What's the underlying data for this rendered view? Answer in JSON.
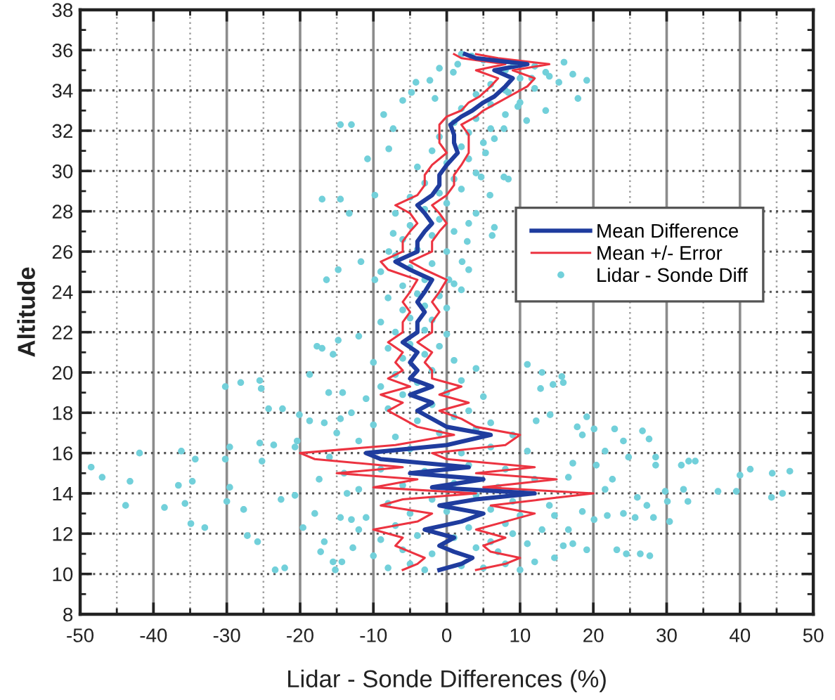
{
  "chart_data": {
    "type": "line",
    "xlabel": "Lidar - Sonde Differences (%)",
    "ylabel": "Altitude",
    "xlim": [
      -50,
      50
    ],
    "xticks": [
      -50,
      -40,
      -30,
      -20,
      -10,
      0,
      10,
      20,
      30,
      40,
      50
    ],
    "ylim": [
      8,
      38
    ],
    "yticks": [
      8,
      10,
      12,
      14,
      16,
      18,
      20,
      22,
      24,
      26,
      28,
      30,
      32,
      34,
      36,
      38
    ],
    "grid": true,
    "legend": "right",
    "series": [
      {
        "name": "Mean Difference",
        "color": "#1f3c9e",
        "x": [
          -1,
          2,
          3.5,
          1,
          -1,
          1,
          -3,
          2,
          5,
          -1,
          4,
          12,
          -2,
          5,
          -5,
          3,
          -9,
          -11,
          0,
          6,
          0,
          -2,
          -4,
          -2,
          -5,
          -2,
          -5,
          -4,
          -5,
          -4,
          -6,
          -4,
          -4,
          -3,
          -4,
          -3,
          -2,
          -5,
          -7,
          -4,
          -4,
          -3,
          -2,
          -3,
          -4,
          -2,
          -1,
          -1,
          0,
          1.5,
          1,
          1,
          0.5,
          2,
          3.5,
          5,
          6.5,
          8,
          9,
          6.5,
          11,
          4,
          2.5
        ],
        "values": [
          10.2,
          10.5,
          10.8,
          11.1,
          11.4,
          11.8,
          12.2,
          12.6,
          13.0,
          13.4,
          13.7,
          14.0,
          14.3,
          14.7,
          15.0,
          15.3,
          15.7,
          16.0,
          16.4,
          16.9,
          17.3,
          17.7,
          18.1,
          18.5,
          18.9,
          19.3,
          19.7,
          20.1,
          20.5,
          21.0,
          21.5,
          22.0,
          22.5,
          23.0,
          23.5,
          24.0,
          24.6,
          25.1,
          25.5,
          26.0,
          26.5,
          27.0,
          27.4,
          27.9,
          28.3,
          28.8,
          29.3,
          29.8,
          30.3,
          30.9,
          31.4,
          31.8,
          32.3,
          32.7,
          33.0,
          33.4,
          33.7,
          34.2,
          34.6,
          35.0,
          35.3,
          35.6,
          35.8
        ]
      },
      {
        "name": "Mean +/- Error",
        "color": "#ec3340",
        "x": [
          4,
          8,
          10,
          6,
          5,
          8,
          4,
          8,
          12,
          6,
          13,
          20,
          5,
          15,
          4,
          12,
          0,
          -2,
          8,
          10,
          4,
          2,
          -1,
          3,
          -1,
          2,
          -2,
          -2,
          -3,
          -2,
          -4,
          -2,
          -2,
          -1,
          -2,
          -1,
          0,
          -3,
          -5,
          -2,
          -2,
          -1,
          0,
          -1,
          -2,
          0,
          1,
          1,
          2,
          3,
          3,
          3,
          2,
          4,
          5,
          7,
          8.5,
          11,
          12,
          9,
          14,
          7,
          4
        ],
        "values": [
          10.2,
          10.5,
          10.8,
          11.1,
          11.4,
          11.8,
          12.2,
          12.6,
          13.0,
          13.4,
          13.7,
          14.0,
          14.3,
          14.7,
          15.0,
          15.3,
          15.7,
          16.0,
          16.4,
          16.9,
          17.3,
          17.7,
          18.1,
          18.5,
          18.9,
          19.3,
          19.7,
          20.1,
          20.5,
          21.0,
          21.5,
          22.0,
          22.5,
          23.0,
          23.5,
          24.0,
          24.6,
          25.1,
          25.5,
          26.0,
          26.5,
          27.0,
          27.4,
          27.9,
          28.3,
          28.8,
          29.3,
          29.8,
          30.3,
          30.9,
          31.4,
          31.8,
          32.3,
          32.7,
          33.0,
          33.4,
          33.7,
          34.2,
          34.6,
          35.0,
          35.3,
          35.6,
          35.8
        ]
      },
      {
        "color": "#ec3340",
        "x": [
          -6,
          -4,
          -3,
          -5,
          -7,
          -6,
          -10,
          -4,
          -2,
          -9,
          -6,
          4,
          -10,
          -4,
          -15,
          -6,
          -18,
          -20,
          -7,
          1,
          -4,
          -6,
          -8,
          -6,
          -9,
          -5,
          -8,
          -6,
          -7,
          -6,
          -8,
          -6,
          -6,
          -5,
          -6,
          -5,
          -4,
          -8,
          -9,
          -6,
          -6,
          -5,
          -4,
          -5,
          -7,
          -4,
          -3,
          -3,
          -2,
          0,
          -1,
          -1,
          -1,
          0,
          2,
          3,
          4.5,
          6,
          7,
          4,
          8,
          2,
          1
        ],
        "values": [
          10.2,
          10.5,
          10.8,
          11.1,
          11.4,
          11.8,
          12.2,
          12.6,
          13.0,
          13.4,
          13.7,
          14.0,
          14.3,
          14.7,
          15.0,
          15.3,
          15.7,
          16.0,
          16.4,
          16.9,
          17.3,
          17.7,
          18.1,
          18.5,
          18.9,
          19.3,
          19.7,
          20.1,
          20.5,
          21.0,
          21.5,
          22.0,
          22.5,
          23.0,
          23.5,
          24.0,
          24.6,
          25.1,
          25.5,
          26.0,
          26.5,
          27.0,
          27.4,
          27.9,
          28.3,
          28.8,
          29.3,
          29.8,
          30.3,
          30.9,
          31.4,
          31.8,
          32.3,
          32.7,
          33.0,
          33.4,
          33.7,
          34.2,
          34.6,
          35.0,
          35.3,
          35.6,
          35.8
        ]
      },
      {
        "name": "Lidar - Sonde Diff",
        "type": "scatter",
        "color": "#72d0da",
        "marker": "circle",
        "x": [
          -41.9,
          -48.5,
          -47,
          -43.2,
          -43.8,
          -38.5,
          -36.2,
          -34.3,
          -36.6,
          -34.7,
          -35.7,
          -34.9,
          -33,
          -30.2,
          -28.1,
          -25.5,
          -25.3,
          -30.2,
          -29.6,
          -29.6,
          -30,
          -27.7,
          -27.2,
          -25.8,
          -23.4,
          -22.1,
          -24.3,
          -22.4,
          -25.5,
          -25.2,
          -23.6,
          -22.6,
          -20.7,
          -20.4,
          -20.7,
          -20.1,
          -18.7,
          -17.7,
          -15.5,
          -14.8,
          -14.2,
          -14.5,
          -18.7,
          -17.4,
          -19.6,
          -18,
          -16.7,
          -15.5,
          -14.5,
          -13.6,
          -13,
          -17.2,
          -14.3,
          -12.8,
          -17,
          -16.1,
          -16.7,
          -15.2,
          15.7,
          15.9,
          12.8,
          20.1,
          22.9,
          26.7,
          27.6,
          24.1,
          21.6,
          24.8,
          28.5,
          28.5,
          32,
          33,
          33.9,
          40,
          41.4,
          44.4,
          46.8,
          44.3,
          45.8,
          39.5,
          37,
          32.3,
          32.9,
          29.8,
          30.1,
          30.4,
          28.2,
          26,
          27.3,
          24.1,
          25.7,
          21.9,
          22.6,
          21.6,
          20.4,
          20.1,
          23.2,
          24.5,
          26.4,
          19.1,
          17.2,
          15.9,
          14.7,
          18.5,
          16.6,
          14.7,
          16.6,
          17.2,
          18.5,
          17.8,
          12.2,
          19.1,
          14.1,
          27.7,
          11,
          13,
          14.5,
          -14.5,
          -13,
          -17,
          -16.4,
          -14.8,
          -10.8,
          -9.8,
          -7.9,
          -7.3,
          -8.6,
          -6,
          -4.8,
          -4.2,
          -2.3,
          -1.6,
          -1,
          0.9,
          1.5,
          3.4,
          9.1,
          11.6,
          13.5,
          15.3,
          17.2,
          19.1,
          17.9,
          13.5,
          9.7,
          10.9,
          7.8,
          6.5,
          5.3,
          4.7,
          7.8,
          8.4,
          5.9,
          6.5,
          6.2,
          4,
          2.8,
          2.1,
          0.3,
          -7.3,
          -7.9,
          -9.8,
          -11.7,
          -14.5,
          -13.3,
          8.4,
          -8,
          -5,
          -3,
          2,
          5,
          8,
          10,
          12,
          -10,
          -6,
          -2,
          4,
          7,
          11,
          -9,
          -4,
          1,
          6,
          9,
          -12,
          -7,
          3,
          8,
          13,
          -11,
          -5,
          0,
          6,
          10,
          -8,
          -2,
          4,
          9,
          14,
          -12,
          -6,
          1,
          7,
          12,
          -14,
          -9,
          -3,
          3,
          8,
          -16,
          -15,
          -5,
          2,
          6,
          11,
          -12,
          -7,
          -1,
          4,
          9,
          -10,
          -4,
          1,
          6,
          -13,
          -8,
          -2,
          3,
          -11,
          -6,
          0,
          5,
          -9,
          -4,
          2,
          -7,
          -2,
          4,
          -10,
          -6,
          -3,
          1,
          -8,
          -5,
          -1,
          -12,
          -7,
          -3,
          0,
          -9,
          -5,
          -2,
          -6,
          -3,
          0,
          -8,
          -4,
          -1,
          2,
          -6,
          -3,
          1,
          -9,
          -5,
          -2,
          3,
          -7,
          -4,
          0,
          -6,
          -2,
          1,
          -5,
          -1,
          3,
          -7,
          -3,
          0,
          -5,
          -1,
          2,
          -3,
          1,
          4,
          -4,
          0,
          3,
          -2,
          2,
          5,
          -1,
          3,
          6,
          1,
          4,
          8,
          2,
          6,
          10,
          4,
          8,
          12,
          6,
          10,
          14,
          8,
          12,
          5,
          16,
          2
        ],
        "values": [
          16.0,
          15.3,
          14.8,
          14.6,
          13.4,
          13.3,
          16.1,
          15.7,
          14.4,
          14.6,
          13.5,
          12.5,
          12.3,
          19.3,
          19.5,
          19.6,
          19.2,
          15.7,
          16.3,
          14.3,
          13.6,
          13.2,
          11.9,
          11.6,
          10.2,
          10.3,
          18.2,
          18.2,
          16.5,
          15.6,
          16.4,
          13.7,
          13.9,
          16.6,
          16.3,
          17.9,
          19.9,
          21.3,
          20.9,
          21.6,
          19.0,
          17.7,
          17.6,
          14.7,
          12.3,
          13.0,
          11.6,
          10.6,
          12.8,
          14.0,
          12.7,
          11.1,
          10.6,
          11.3,
          21.2,
          19.0,
          17.5,
          10.2,
          19.8,
          19.5,
          19.2,
          17.2,
          17.2,
          17.1,
          16.7,
          16.6,
          16.1,
          15.8,
          15.8,
          15.4,
          15.4,
          15.6,
          15.6,
          14.9,
          15.2,
          15.0,
          15.1,
          13.8,
          14.0,
          14.1,
          14.1,
          14.2,
          13.6,
          14.1,
          13.6,
          12.6,
          12.8,
          13.8,
          13.4,
          13.0,
          12.8,
          12.9,
          14.7,
          14.2,
          15.4,
          12.7,
          11.2,
          11.0,
          11.0,
          11.2,
          11.5,
          11.4,
          10.8,
          13.1,
          12.2,
          12.9,
          14.8,
          15.5,
          16.9,
          17.3,
          17.6,
          17.8,
          17.9,
          10.9,
          20.4,
          20.0,
          19.4,
          32.3,
          32.3,
          28.6,
          24.6,
          25.1,
          30.6,
          28.8,
          31.1,
          32.1,
          32.8,
          33.5,
          33.9,
          34.4,
          34.5,
          33.6,
          35.1,
          34.9,
          35.3,
          35.7,
          35.3,
          34.6,
          34.9,
          34.4,
          34.8,
          34.5,
          33.6,
          33.0,
          33.2,
          32.5,
          32.1,
          31.6,
          30.9,
          29.7,
          29.7,
          29.6,
          28.8,
          27.2,
          26.8,
          27.9,
          26.5,
          25.5,
          24.6,
          26.9,
          26.0,
          24.6,
          25.5,
          28.6,
          27.9,
          33.9,
          10.3,
          10.5,
          10.2,
          10.4,
          10.3,
          10.5,
          10.2,
          10.6,
          10.9,
          11.2,
          11.0,
          11.3,
          11.1,
          11.5,
          11.7,
          11.9,
          11.8,
          11.6,
          12.0,
          12.2,
          12.4,
          12.3,
          12.5,
          12.2,
          12.8,
          13.0,
          13.1,
          13.2,
          12.9,
          13.5,
          13.7,
          13.9,
          13.6,
          13.4,
          14.2,
          14.4,
          14.5,
          14.3,
          14.7,
          15.0,
          15.2,
          15.1,
          15.4,
          15.2,
          15.8,
          17.0,
          16.2,
          16.0,
          16.3,
          16.1,
          16.6,
          16.8,
          17.0,
          17.2,
          16.9,
          17.4,
          17.6,
          17.8,
          17.5,
          18.0,
          18.2,
          18.4,
          18.1,
          18.7,
          18.9,
          19.0,
          18.8,
          19.3,
          19.5,
          19.6,
          19.9,
          20.1,
          20.2,
          20.5,
          20.7,
          20.9,
          20.6,
          21.2,
          21.4,
          21.3,
          21.8,
          22.0,
          22.1,
          21.9,
          22.5,
          22.7,
          22.6,
          23.1,
          23.3,
          23.2,
          23.7,
          23.9,
          23.8,
          24.1,
          24.3,
          24.6,
          24.4,
          25.0,
          25.2,
          25.4,
          25.1,
          25.8,
          26.1,
          26.0,
          26.6,
          26.8,
          27.0,
          27.3,
          27.6,
          27.4,
          27.9,
          28.1,
          28.4,
          28.7,
          28.9,
          29.1,
          29.4,
          29.6,
          29.9,
          30.2,
          30.4,
          30.6,
          31.0,
          31.2,
          31.4,
          31.7,
          31.9,
          32.1,
          32.4,
          32.6,
          32.8,
          33.1,
          33.3,
          33.4,
          33.8,
          34.0,
          34.1,
          34.3,
          34.6,
          34.7,
          35.0,
          35.2,
          35.5,
          35.4,
          35.8
        ]
      }
    ]
  }
}
